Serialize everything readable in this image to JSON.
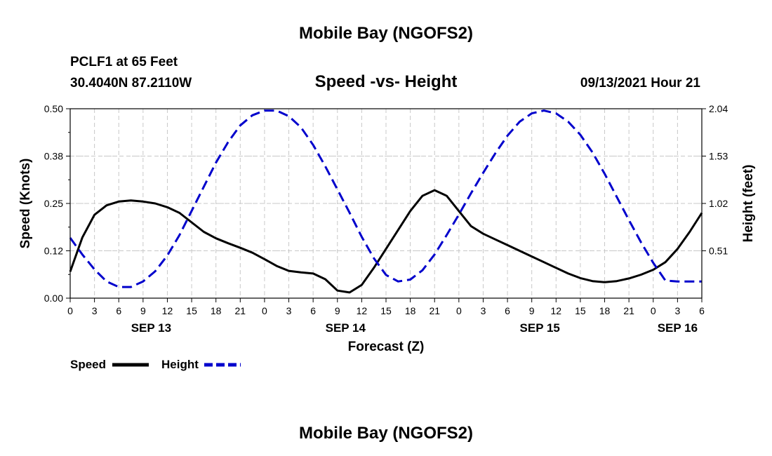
{
  "header": {
    "title": "Mobile Bay (NGOFS2)",
    "station": "PCLF1 at 65 Feet",
    "coords": "30.4040N  87.2110W",
    "chart_title": "Speed -vs- Height",
    "datetime": "09/13/2021 Hour 21"
  },
  "footer": {
    "title": "Mobile Bay (NGOFS2)"
  },
  "legend": {
    "speed_label": "Speed",
    "height_label": "Height"
  },
  "colors": {
    "speed": "#000000",
    "height": "#0000cc",
    "grid": "#c8c8c8"
  },
  "chart_data": {
    "type": "line",
    "xlabel": "Forecast (Z)",
    "ylabel_left": "Speed (Knots)",
    "ylabel_right": "Height (feet)",
    "x_hours_range": [
      0,
      78
    ],
    "x_tick_labels": [
      "0",
      "3",
      "6",
      "9",
      "12",
      "15",
      "18",
      "21",
      "0",
      "3",
      "6",
      "9",
      "12",
      "15",
      "18",
      "21",
      "0",
      "3",
      "6",
      "9",
      "12",
      "15",
      "18",
      "21",
      "0",
      "3",
      "6"
    ],
    "date_labels": [
      {
        "label": "SEP 13",
        "hour": 10
      },
      {
        "label": "SEP 14",
        "hour": 34
      },
      {
        "label": "SEP 15",
        "hour": 58
      },
      {
        "label": "SEP 16",
        "hour": 75
      }
    ],
    "y_left": {
      "ticks": [
        "0.00",
        "0.12",
        "0.25",
        "0.38",
        "0.50"
      ],
      "range": [
        0,
        0.5
      ]
    },
    "y_right": {
      "ticks": [
        "0.51",
        "1.02",
        "1.53",
        "2.04"
      ],
      "range": [
        0,
        2.04
      ]
    },
    "grid": true,
    "legend_position": "bottom-left",
    "series": [
      {
        "name": "Speed",
        "axis": "left",
        "style": "solid",
        "x": [
          0,
          1.5,
          3,
          4.5,
          6,
          7.5,
          9,
          10.5,
          12,
          13.5,
          15,
          16.5,
          18,
          19.5,
          21,
          22.5,
          24,
          25.5,
          27,
          28.5,
          30,
          31.5,
          33,
          34.5,
          36,
          37.5,
          39,
          40.5,
          42,
          43.5,
          45,
          46.5,
          48,
          49.5,
          51,
          52.5,
          54,
          55.5,
          57,
          58.5,
          60,
          61.5,
          63,
          64.5,
          66,
          67.5,
          69,
          70.5,
          72,
          73.5,
          75,
          76.5,
          78
        ],
        "values": [
          0.07,
          0.16,
          0.22,
          0.245,
          0.255,
          0.258,
          0.255,
          0.25,
          0.24,
          0.225,
          0.2,
          0.175,
          0.158,
          0.145,
          0.133,
          0.12,
          0.103,
          0.085,
          0.072,
          0.068,
          0.065,
          0.05,
          0.02,
          0.015,
          0.035,
          0.08,
          0.13,
          0.18,
          0.23,
          0.27,
          0.285,
          0.27,
          0.23,
          0.19,
          0.17,
          0.155,
          0.14,
          0.125,
          0.11,
          0.095,
          0.08,
          0.065,
          0.053,
          0.045,
          0.042,
          0.045,
          0.052,
          0.062,
          0.075,
          0.095,
          0.13,
          0.175,
          0.225
        ]
      },
      {
        "name": "Height",
        "axis": "right",
        "style": "dashed",
        "x": [
          0,
          1.5,
          3,
          4.5,
          6,
          7.5,
          9,
          10.5,
          12,
          13.5,
          15,
          16.5,
          18,
          19.5,
          21,
          22.5,
          24,
          25.5,
          27,
          28.5,
          30,
          31.5,
          33,
          34.5,
          36,
          37.5,
          39,
          40.5,
          42,
          43.5,
          45,
          46.5,
          48,
          49.5,
          51,
          52.5,
          54,
          55.5,
          57,
          58.5,
          60,
          61.5,
          63,
          64.5,
          66,
          67.5,
          69,
          70.5,
          72,
          73.5,
          75,
          76.5,
          78
        ],
        "values": [
          0.65,
          0.47,
          0.31,
          0.18,
          0.12,
          0.12,
          0.18,
          0.29,
          0.46,
          0.68,
          0.94,
          1.2,
          1.46,
          1.68,
          1.86,
          1.97,
          2.02,
          2.02,
          1.96,
          1.84,
          1.65,
          1.42,
          1.17,
          0.92,
          0.66,
          0.43,
          0.25,
          0.18,
          0.2,
          0.3,
          0.47,
          0.68,
          0.9,
          1.13,
          1.35,
          1.56,
          1.75,
          1.9,
          1.99,
          2.02,
          1.99,
          1.9,
          1.76,
          1.57,
          1.34,
          1.09,
          0.84,
          0.6,
          0.38,
          0.19,
          0.18,
          0.18,
          0.18
        ]
      }
    ]
  }
}
